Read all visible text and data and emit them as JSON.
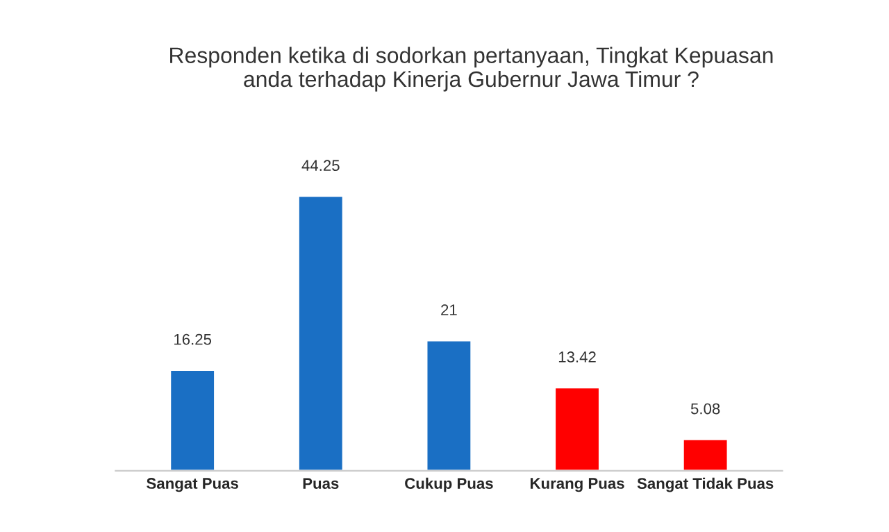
{
  "chart_data": {
    "type": "bar",
    "title": "Responden ketika di sodorkan pertanyaan, Tingkat Kepuasan\nanda terhadap Kinerja Gubernur Jawa Timur ?",
    "categories": [
      "Sangat Puas",
      "Puas",
      "Cukup Puas",
      "Kurang Puas",
      "Sangat Tidak Puas"
    ],
    "values": [
      16.25,
      44.25,
      21,
      13.42,
      5.08
    ],
    "colors": [
      "#1a6fc4",
      "#1a6fc4",
      "#1a6fc4",
      "#ff0000",
      "#ff0000"
    ],
    "data_labels": true,
    "grid": false,
    "legend": false
  }
}
